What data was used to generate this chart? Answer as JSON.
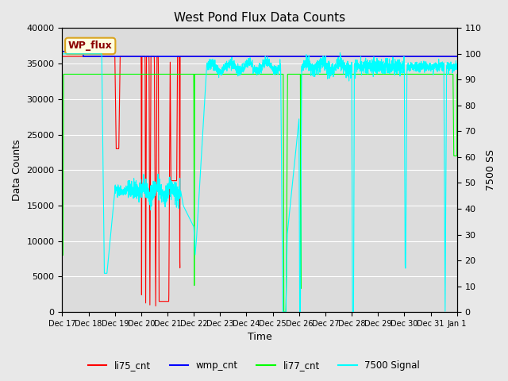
{
  "title": "West Pond Flux Data Counts",
  "xlabel": "Time",
  "ylabel_left": "Data Counts",
  "ylabel_right": "7500 SS",
  "ylim_left": [
    0,
    40000
  ],
  "ylim_right": [
    0,
    110
  ],
  "fig_bg_color": "#e8e8e8",
  "plot_bg_color": "#dcdcdc",
  "legend_box_label": "WP_flux",
  "legend_entries": [
    "li75_cnt",
    "wmp_cnt",
    "li77_cnt",
    "7500 Signal"
  ],
  "legend_colors": [
    "red",
    "blue",
    "lime",
    "cyan"
  ],
  "xtick_labels": [
    "Dec 17",
    "Dec 18",
    "Dec 19",
    "Dec 20",
    "Dec 21",
    "Dec 22",
    "Dec 23",
    "Dec 24",
    "Dec 25",
    "Dec 26",
    "Dec 27",
    "Dec 28",
    "Dec 29",
    "Dec 30",
    "Dec 31",
    "Jan 1"
  ],
  "yticks_left": [
    0,
    5000,
    10000,
    15000,
    20000,
    25000,
    30000,
    35000,
    40000
  ],
  "yticks_right": [
    0,
    10,
    20,
    30,
    40,
    50,
    60,
    70,
    80,
    90,
    100,
    110
  ]
}
